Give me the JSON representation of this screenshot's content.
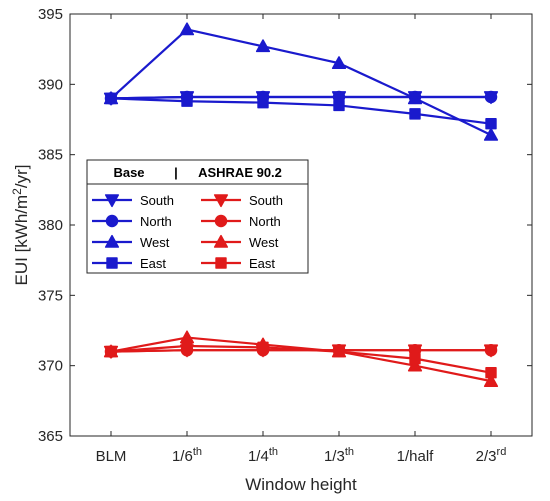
{
  "chart_data": {
    "type": "line",
    "categories": [
      {
        "base": "BLM",
        "sup": ""
      },
      {
        "base": "1/6",
        "sup": "th"
      },
      {
        "base": "1/4",
        "sup": "th"
      },
      {
        "base": "1/3",
        "sup": "th"
      },
      {
        "base": "1/half",
        "sup": ""
      },
      {
        "base": "2/3",
        "sup": "rd"
      }
    ],
    "xlabel": "Window height",
    "ylabel": {
      "pre": "EUI [kWh/m",
      "sup": "2",
      "post": "/yr]"
    },
    "ylim": [
      365,
      395
    ],
    "yticks": [
      365,
      370,
      375,
      380,
      385,
      390,
      395
    ],
    "grid": false,
    "legend": {
      "placement": "center-left",
      "title_left": "Base",
      "title_sep": "|",
      "title_right": "ASHRAE 90.2",
      "rows": [
        {
          "left": "South",
          "right": "South",
          "marker": "triangle-down"
        },
        {
          "left": "North",
          "right": "North",
          "marker": "circle"
        },
        {
          "left": "West",
          "right": "West",
          "marker": "triangle-up"
        },
        {
          "left": "East",
          "right": "East",
          "marker": "square"
        }
      ]
    },
    "colors": {
      "base": "#1a1acd",
      "ashrae": "#e01a1a"
    },
    "series": [
      {
        "name": "South",
        "group": "base",
        "marker": "triangle-down",
        "values": [
          389.0,
          389.1,
          389.1,
          389.1,
          389.1,
          389.1
        ]
      },
      {
        "name": "North",
        "group": "base",
        "marker": "circle",
        "values": [
          389.0,
          389.1,
          389.1,
          389.1,
          389.1,
          389.1
        ]
      },
      {
        "name": "West",
        "group": "base",
        "marker": "triangle-up",
        "values": [
          389.0,
          393.9,
          392.7,
          391.5,
          389.0,
          386.4
        ]
      },
      {
        "name": "East",
        "group": "base",
        "marker": "square",
        "values": [
          389.0,
          388.8,
          388.7,
          388.5,
          387.9,
          387.2
        ]
      },
      {
        "name": "South",
        "group": "ashrae",
        "marker": "triangle-down",
        "values": [
          371.0,
          371.1,
          371.1,
          371.1,
          371.1,
          371.1
        ]
      },
      {
        "name": "North",
        "group": "ashrae",
        "marker": "circle",
        "values": [
          371.0,
          371.1,
          371.1,
          371.1,
          371.1,
          371.1
        ]
      },
      {
        "name": "West",
        "group": "ashrae",
        "marker": "triangle-up",
        "values": [
          371.0,
          372.0,
          371.5,
          371.0,
          370.0,
          368.9
        ]
      },
      {
        "name": "East",
        "group": "ashrae",
        "marker": "square",
        "values": [
          371.0,
          371.4,
          371.3,
          371.0,
          370.5,
          369.5
        ]
      }
    ]
  }
}
